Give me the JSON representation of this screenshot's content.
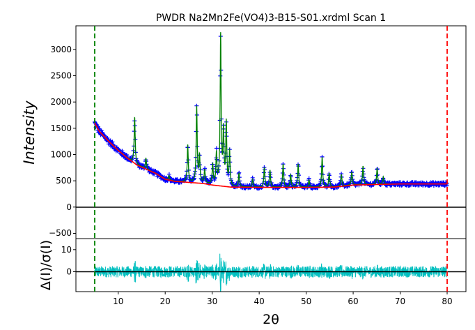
{
  "chart_data": {
    "type": "scatter",
    "title": "PWDR Na2Mn2Fe(VO4)3-B15-S01.xrdml Scan 1",
    "xlabel": "2θ",
    "ylabel": "Intensity",
    "residual_ylabel": "Δ(I)/σ(I)",
    "xlim": [
      1,
      84
    ],
    "ylim": [
      -600,
      3450
    ],
    "residual_ylim": [
      -9,
      15
    ],
    "xticks": [
      10,
      20,
      30,
      40,
      50,
      60,
      70,
      80
    ],
    "yticks": [
      0,
      500,
      1000,
      1500,
      2000,
      2500,
      3000
    ],
    "ytick_labels": [
      "0",
      "500",
      "1000",
      "1500",
      "2000",
      "2500",
      "3000"
    ],
    "bottom_tick_label": "−500",
    "residual_yticks": [
      0,
      10
    ],
    "limits": [
      {
        "name": "lower-limit",
        "x": 5,
        "color": "#008000"
      },
      {
        "name": "upper-limit",
        "x": 80,
        "color": "#ff0000"
      }
    ],
    "background": {
      "color": "#ff0000",
      "x": [
        5,
        6,
        8,
        10,
        12,
        14,
        16,
        18,
        20,
        22,
        25,
        28,
        30,
        32,
        34,
        40,
        50,
        56,
        60,
        65,
        70,
        75,
        80
      ],
      "y": [
        1600,
        1440,
        1250,
        1080,
        930,
        800,
        720,
        640,
        530,
        490,
        470,
        450,
        420,
        400,
        380,
        375,
        375,
        380,
        420,
        430,
        440,
        440,
        440
      ]
    },
    "peaks": [
      {
        "x": 13.5,
        "y": 1720
      },
      {
        "x": 15.9,
        "y": 930
      },
      {
        "x": 20.8,
        "y": 600
      },
      {
        "x": 24.8,
        "y": 1180
      },
      {
        "x": 26.7,
        "y": 1920
      },
      {
        "x": 27.3,
        "y": 960
      },
      {
        "x": 28.4,
        "y": 700
      },
      {
        "x": 30.1,
        "y": 800
      },
      {
        "x": 30.9,
        "y": 1000
      },
      {
        "x": 31.8,
        "y": 3250
      },
      {
        "x": 32.4,
        "y": 1400
      },
      {
        "x": 33.0,
        "y": 1580
      },
      {
        "x": 33.7,
        "y": 1050
      },
      {
        "x": 35.7,
        "y": 640
      },
      {
        "x": 38.6,
        "y": 520
      },
      {
        "x": 41.1,
        "y": 750
      },
      {
        "x": 42.3,
        "y": 700
      },
      {
        "x": 45.1,
        "y": 820
      },
      {
        "x": 46.7,
        "y": 620
      },
      {
        "x": 48.3,
        "y": 820
      },
      {
        "x": 50.6,
        "y": 520
      },
      {
        "x": 53.4,
        "y": 950
      },
      {
        "x": 54.9,
        "y": 640
      },
      {
        "x": 57.5,
        "y": 620
      },
      {
        "x": 59.7,
        "y": 670
      },
      {
        "x": 62.1,
        "y": 780
      },
      {
        "x": 65.1,
        "y": 740
      },
      {
        "x": 66.4,
        "y": 570
      }
    ],
    "series": [
      {
        "name": "observed",
        "color": "#0000ff"
      },
      {
        "name": "calculated",
        "color": "#008000"
      },
      {
        "name": "background",
        "color": "#ff0000"
      },
      {
        "name": "difference",
        "color": "#00bfbf"
      }
    ]
  }
}
